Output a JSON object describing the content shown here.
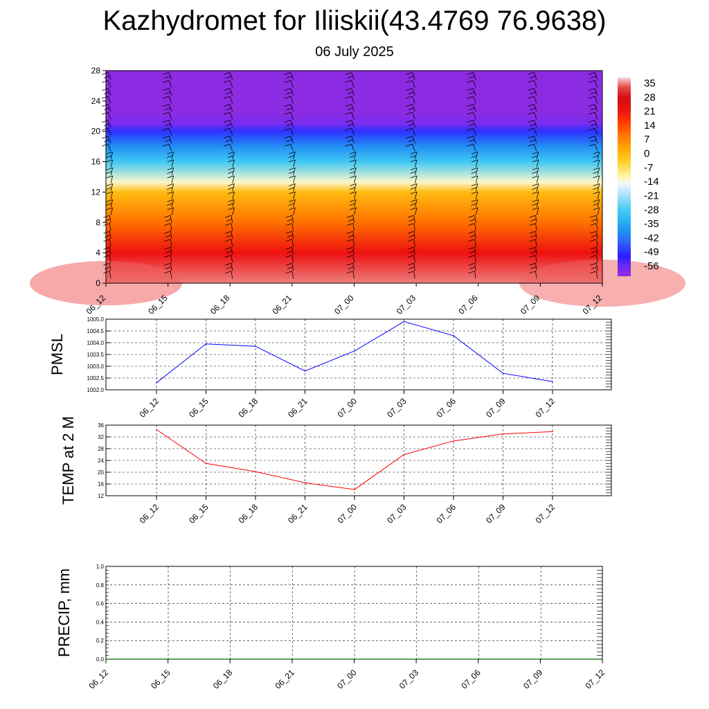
{
  "title": "Kazhydromet for Iliiskii(43.4769 76.9638)",
  "subtitle": "06 July 2025",
  "time_labels": [
    "06_12",
    "06_15",
    "06_18",
    "06_21",
    "07_00",
    "07_03",
    "07_06",
    "07_09",
    "07_12"
  ],
  "chart_data": [
    {
      "type": "heatmap",
      "name": "cross-section",
      "x": [
        "06_12",
        "06_15",
        "06_18",
        "06_21",
        "07_00",
        "07_03",
        "07_06",
        "07_09",
        "07_12"
      ],
      "y_ticks": [
        0,
        4,
        8,
        12,
        16,
        20,
        24,
        28
      ],
      "ylim": [
        0,
        28
      ],
      "colorbar_labels": [
        "35",
        "28",
        "21",
        "14",
        "7",
        "0",
        "-7",
        "-14",
        "-21",
        "-28",
        "-35",
        "-42",
        "-49",
        "-56"
      ],
      "colorbar_range": [
        -60,
        38
      ],
      "temperature_profile": [
        {
          "height": 0,
          "value": 35
        },
        {
          "height": 4,
          "value": 22
        },
        {
          "height": 8,
          "value": 10
        },
        {
          "height": 12,
          "value": 0
        },
        {
          "height": 13.3,
          "value": -12
        },
        {
          "height": 16,
          "value": -28
        },
        {
          "height": 18,
          "value": -38
        },
        {
          "height": 20,
          "value": -48
        },
        {
          "height": 21,
          "value": -56
        },
        {
          "height": 22.5,
          "value": -60
        },
        {
          "height": 28,
          "value": -60
        }
      ],
      "grid": false
    },
    {
      "type": "line",
      "ylabel": "PMSL",
      "x": [
        "06_12",
        "06_15",
        "06_18",
        "06_21",
        "07_00",
        "07_03",
        "07_06",
        "07_09",
        "07_12"
      ],
      "values": [
        1002.3,
        1003.95,
        1003.85,
        1002.8,
        1003.65,
        1004.9,
        1004.3,
        1002.7,
        1002.35
      ],
      "ylim": [
        1002.0,
        1005.0
      ],
      "y_ticks": [
        "1002.0",
        "1002.5",
        "1003.0",
        "1003.5",
        "1004.0",
        "1004.5",
        "1005.0"
      ],
      "color": "#0000ff",
      "grid": true
    },
    {
      "type": "line",
      "ylabel": "TEMP at 2 M",
      "x": [
        "06_12",
        "06_15",
        "06_18",
        "06_21",
        "07_00",
        "07_03",
        "07_06",
        "07_09",
        "07_12"
      ],
      "values": [
        34.5,
        23.0,
        20.2,
        16.4,
        14.1,
        26.0,
        30.6,
        33.0,
        33.8
      ],
      "ylim": [
        12,
        36
      ],
      "y_ticks": [
        "12",
        "16",
        "20",
        "24",
        "28",
        "32",
        "36"
      ],
      "color": "#ff0000",
      "grid": true
    },
    {
      "type": "line",
      "ylabel": "PRECIP, mm",
      "x": [
        "06_12",
        "06_15",
        "06_18",
        "06_21",
        "07_00",
        "07_03",
        "07_06",
        "07_09",
        "07_12"
      ],
      "values": [
        0,
        0,
        0,
        0,
        0,
        0,
        0,
        0,
        0
      ],
      "ylim": [
        0,
        1.0
      ],
      "y_ticks": [
        "0.0",
        "0.2",
        "0.4",
        "0.6",
        "0.8",
        "1.0"
      ],
      "color": "#006400",
      "grid": true
    }
  ]
}
